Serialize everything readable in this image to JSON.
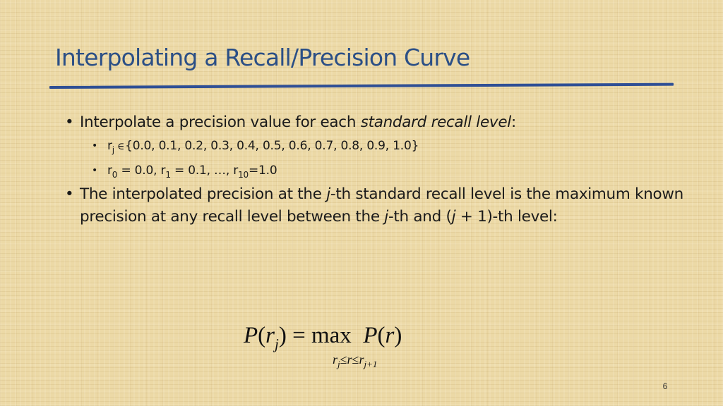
{
  "slide": {
    "title": "Interpolating a Recall/Precision Curve",
    "bullet1": {
      "bullet": "•",
      "text_before": "Interpolate a precision value for each ",
      "text_emphasis": "standard recall level",
      "text_after": ":"
    },
    "sub1": {
      "bullet": "•",
      "r": "r",
      "sub_j": "j",
      "elem_symbol": "∈",
      "set": "{0.0, 0.1, 0.2, 0.3, 0.4, 0.5, 0.6, 0.7, 0.8, 0.9, 1.0}"
    },
    "sub2": {
      "bullet": "•",
      "r0": "r",
      "sub0": "0",
      "after0": " = 0.0, ",
      "r1": "r",
      "sub1": "1",
      "after1": " = 0.1, …, ",
      "r10": "r",
      "sub10": "10",
      "after10": "=1.0"
    },
    "bullet2": {
      "bullet": "•",
      "part1": "The interpolated precision at the ",
      "j1": "j",
      "part2": "-th standard recall level is the maximum known precision at any recall level between the ",
      "j2": "j",
      "part3": "-th and (",
      "j3": "j",
      "part4": " + 1)-th level:"
    },
    "formula": {
      "P1": "P",
      "open1": "(",
      "r1": "r",
      "j1": "j",
      "close1": ")",
      "equals": " = ",
      "max": "max",
      "P2": "P",
      "open2": "(",
      "r2": "r",
      "close2": ")",
      "lim_r": "r",
      "lim_j": "j",
      "lim_le1": "≤",
      "lim_mid_r": "r",
      "lim_le2": "≤",
      "lim_r2": "r",
      "lim_j1": "j+1"
    },
    "page_number": "6"
  }
}
